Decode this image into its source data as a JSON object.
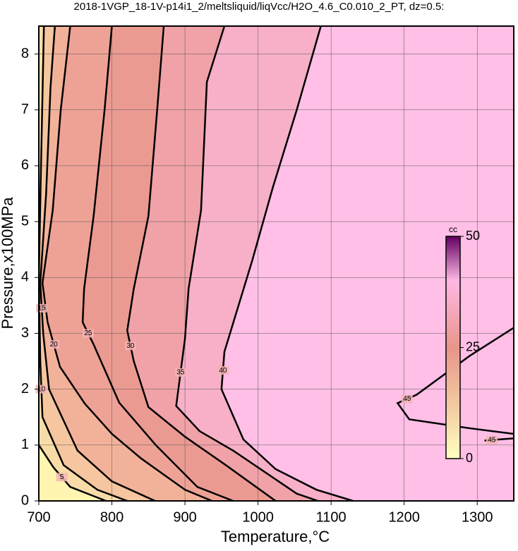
{
  "chart_data": {
    "type": "contour",
    "title": "2018-1VGP_18-1V-p14i1_2/meltsliquid/liqVcc/H2O_4.6_C0.010_2_PT, dz=0.5:",
    "x_label": "Temperature,°C",
    "y_label": "Pressure,x100MPa",
    "xlim": [
      700,
      1350
    ],
    "ylim": [
      0,
      8.5
    ],
    "xticks": [
      700,
      800,
      900,
      1000,
      1100,
      1200,
      1300
    ],
    "yticks": [
      0,
      1,
      2,
      3,
      4,
      5,
      6,
      7,
      8
    ],
    "grid": true,
    "contours": [
      {
        "level": 5,
        "x": [
          700,
          720,
          743,
          792
        ],
        "y": [
          1.0,
          0.6,
          0.25,
          0
        ]
      },
      {
        "level": 10,
        "x": [
          707,
          703,
          700,
          702,
          705,
          734,
          780,
          821
        ],
        "y": [
          8.5,
          6,
          4,
          2.5,
          1.5,
          0.64,
          0.2,
          0
        ]
      },
      {
        "level": 15,
        "x": [
          722,
          716,
          710,
          702,
          706,
          714,
          753,
          800,
          859
        ],
        "y": [
          8.5,
          7.4,
          5.5,
          3.9,
          3,
          2.0,
          0.9,
          0.35,
          0
        ]
      },
      {
        "level": 20,
        "x": [
          743,
          730,
          719,
          705,
          712,
          729,
          763,
          800,
          840,
          900,
          937
        ],
        "y": [
          8.5,
          7,
          5.2,
          3.9,
          3.2,
          2.4,
          1.74,
          1.2,
          0.76,
          0.2,
          0
        ]
      },
      {
        "level": 25,
        "x": [
          800,
          790,
          775,
          762,
          760,
          775,
          810,
          860,
          917,
          966
        ],
        "y": [
          8.5,
          7,
          5.1,
          3.8,
          3.2,
          2.8,
          1.76,
          1.0,
          0.25,
          0
        ]
      },
      {
        "level": 30,
        "x": [
          871,
          862,
          850,
          830,
          821,
          830,
          850,
          900,
          956,
          1024
        ],
        "y": [
          8.5,
          7,
          5.1,
          3.8,
          3.05,
          2.5,
          1.68,
          1.15,
          0.64,
          0
        ]
      },
      {
        "level": 35,
        "x": [
          954,
          930,
          922,
          905,
          900,
          888,
          920,
          966,
          1053,
          1082
        ],
        "y": [
          8.5,
          7.5,
          5.2,
          3.8,
          2.9,
          1.7,
          1.25,
          0.9,
          0.13,
          0
        ]
      },
      {
        "level": 40,
        "x": [
          1086,
          1053,
          1020,
          992,
          954,
          950,
          980,
          1024,
          1080,
          1130
        ],
        "y": [
          8.5,
          7.0,
          5.6,
          4.3,
          2.67,
          2.0,
          1.1,
          0.57,
          0.2,
          0
        ]
      },
      {
        "level": 45,
        "x": [
          1350,
          1290,
          1217,
          1191,
          1207,
          1290,
          1350
        ],
        "y": [
          3.1,
          2.6,
          1.9,
          1.75,
          1.46,
          1.3,
          1.2
        ]
      },
      {
        "level": 45,
        "x": [
          1310,
          1330,
          1350
        ],
        "y": [
          1.08,
          1.1,
          1.12
        ]
      }
    ],
    "colorbar": {
      "label": "cc",
      "lim": [
        0,
        50
      ],
      "ticks": [
        0,
        25,
        50
      ]
    }
  }
}
